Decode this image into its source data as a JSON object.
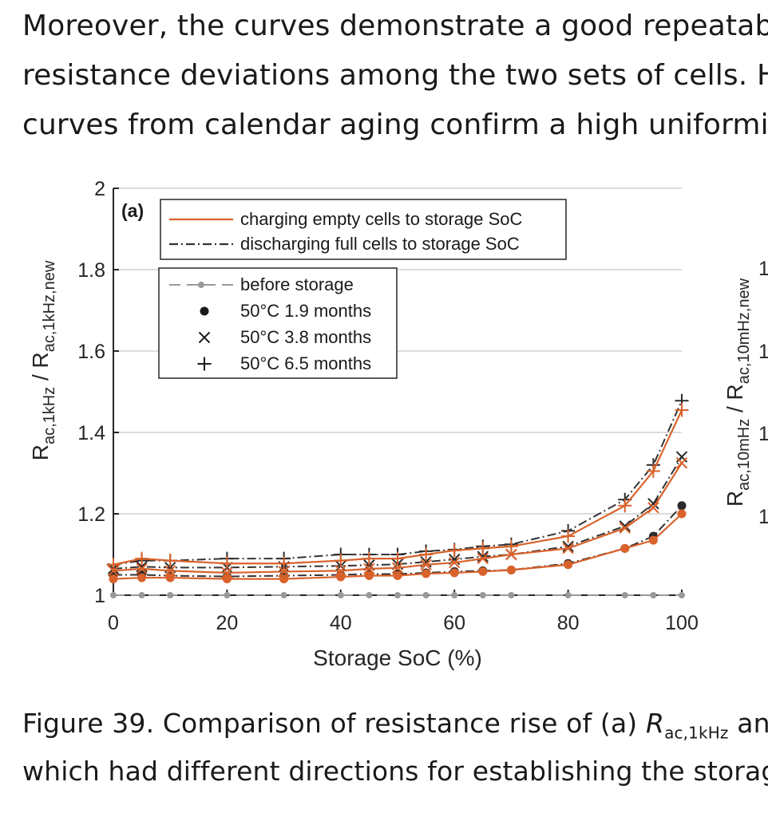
{
  "text": {
    "top_lines": [
      "Moreover, the curves demonstrate a good repeatabil",
      "resistance deviations among the two sets of cells. H",
      "curves from calendar aging confirm a high uniformity"
    ],
    "caption_line1_start": "Figure 39.  Comparison of resistance rise of (a) ",
    "caption_R": "R",
    "caption_sub": "ac,1kHz",
    "caption_line1_end": " and (",
    "caption_line2": "which had different directions for establishing the storage"
  },
  "chart_data": {
    "type": "line",
    "panel_label": "(a)",
    "xlabel": "Storage SoC (%)",
    "ylabel": {
      "main1": "R",
      "sub1": "ac,1kHz",
      "mid": " / R",
      "sub2": "ac,1kHz,new"
    },
    "xlim": [
      0,
      100
    ],
    "ylim": [
      1,
      2
    ],
    "xticks": [
      0,
      20,
      40,
      60,
      80,
      100
    ],
    "yticks": [
      1,
      1.2,
      1.4,
      1.6,
      1.8,
      2
    ],
    "ytick_labels": [
      "1",
      "1.2",
      "1.4",
      "1.6",
      "1.8",
      "2"
    ],
    "grid": true,
    "x": [
      0,
      5,
      10,
      20,
      30,
      40,
      45,
      50,
      55,
      60,
      65,
      70,
      80,
      90,
      95,
      100
    ],
    "colors": {
      "charging": "#d9622b",
      "discharging": "#333333",
      "before": "#999999"
    },
    "legend_direction": [
      {
        "label": "charging empty cells to storage SoC",
        "style": "solid"
      },
      {
        "label": "discharging full cells to storage SoC",
        "style": "dashdot"
      }
    ],
    "legend_markers": [
      {
        "label": "before storage",
        "marker": "gray-dot"
      },
      {
        "label": "50°C  1.9 months",
        "marker": "dot"
      },
      {
        "label": "50°C  3.8 months",
        "marker": "x"
      },
      {
        "label": "50°C  6.5 months",
        "marker": "plus"
      }
    ],
    "series": [
      {
        "name": "before storage",
        "direction": "before",
        "marker": "gray-dot",
        "values": [
          1,
          1,
          1,
          1,
          1,
          1,
          1,
          1,
          1,
          1,
          1,
          1,
          1,
          1,
          1,
          1
        ]
      },
      {
        "name": "50°C 1.9 months charging",
        "direction": "charging",
        "marker": "dot",
        "values": [
          1.04,
          1.043,
          1.043,
          1.04,
          1.04,
          1.045,
          1.048,
          1.048,
          1.053,
          1.055,
          1.058,
          1.062,
          1.075,
          1.115,
          1.135,
          1.2
        ]
      },
      {
        "name": "50°C 1.9 months discharging",
        "direction": "discharging",
        "marker": "dot",
        "values": [
          1.05,
          1.05,
          1.048,
          1.046,
          1.048,
          1.05,
          1.052,
          1.052,
          1.055,
          1.058,
          1.06,
          1.062,
          1.078,
          1.115,
          1.145,
          1.22
        ]
      },
      {
        "name": "50°C 3.8 months charging",
        "direction": "charging",
        "marker": "x",
        "values": [
          1.06,
          1.065,
          1.06,
          1.055,
          1.058,
          1.06,
          1.065,
          1.067,
          1.075,
          1.08,
          1.09,
          1.1,
          1.115,
          1.165,
          1.215,
          1.325
        ]
      },
      {
        "name": "50°C 3.8 months discharging",
        "direction": "discharging",
        "marker": "x",
        "values": [
          1.065,
          1.07,
          1.068,
          1.068,
          1.07,
          1.072,
          1.074,
          1.076,
          1.082,
          1.088,
          1.095,
          1.1,
          1.12,
          1.17,
          1.225,
          1.34
        ]
      },
      {
        "name": "50°C 6.5 months charging",
        "direction": "charging",
        "marker": "plus",
        "values": [
          1.075,
          1.09,
          1.085,
          1.078,
          1.078,
          1.085,
          1.09,
          1.09,
          1.1,
          1.11,
          1.115,
          1.12,
          1.145,
          1.22,
          1.305,
          1.455
        ]
      },
      {
        "name": "50°C 6.5 months discharging",
        "direction": "discharging",
        "marker": "plus",
        "values": [
          1.075,
          1.085,
          1.085,
          1.09,
          1.09,
          1.1,
          1.1,
          1.1,
          1.108,
          1.112,
          1.12,
          1.125,
          1.158,
          1.235,
          1.32,
          1.478
        ]
      }
    ],
    "right_panel": {
      "ylabel": {
        "main1": "R",
        "sub1": "ac,10mHz",
        "mid": " / R",
        "sub2": "ac,10mHz,new"
      },
      "visible_tick_fragments": [
        "1",
        "1",
        "1",
        "1"
      ]
    }
  }
}
